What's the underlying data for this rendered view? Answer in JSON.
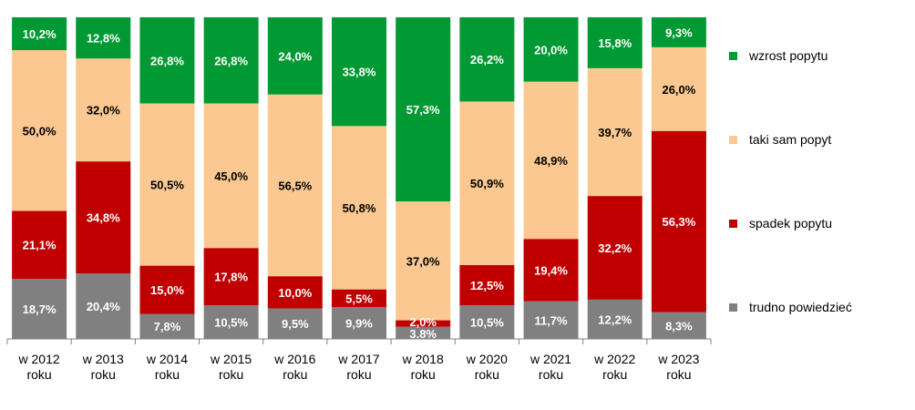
{
  "chart_data": {
    "type": "bar",
    "stacked": true,
    "normalized_percent": true,
    "title": "",
    "xlabel": "",
    "ylabel": "",
    "ylim": [
      0,
      100
    ],
    "grid": false,
    "legend_position": "right",
    "categories": [
      [
        "w 2012",
        "roku"
      ],
      [
        "w 2013",
        "roku"
      ],
      [
        "w 2014",
        "roku"
      ],
      [
        "w 2015",
        "roku"
      ],
      [
        "w 2016",
        "roku"
      ],
      [
        "w 2017",
        "roku"
      ],
      [
        "w 2018",
        "roku"
      ],
      [
        "w 2020",
        "roku"
      ],
      [
        "w 2021",
        "roku"
      ],
      [
        "w 2022",
        "roku"
      ],
      [
        "w 2023",
        "roku"
      ]
    ],
    "series": [
      {
        "name": "trudno powiedzieć",
        "color": "#808080",
        "label_color": "#ffffff",
        "values": [
          18.7,
          20.4,
          7.8,
          10.5,
          9.5,
          9.9,
          3.8,
          10.5,
          11.7,
          12.2,
          8.3
        ],
        "labels": [
          "18,7%",
          "20,4%",
          "7,8%",
          "10,5%",
          "9,5%",
          "9,9%",
          "3,8%",
          "10,5%",
          "11,7%",
          "12,2%",
          "8,3%"
        ]
      },
      {
        "name": "spadek popytu",
        "color": "#c00000",
        "label_color": "#ffffff",
        "values": [
          21.1,
          34.8,
          15.0,
          17.8,
          10.0,
          5.5,
          2.0,
          12.5,
          19.4,
          32.2,
          56.3
        ],
        "labels": [
          "21,1%",
          "34,8%",
          "15,0%",
          "17,8%",
          "10,0%",
          "5,5%",
          "2,0%",
          "12,5%",
          "19,4%",
          "32,2%",
          "56,3%"
        ]
      },
      {
        "name": "taki sam popyt",
        "color": "#fac890",
        "label_color": "#000000",
        "values": [
          50.0,
          32.0,
          50.5,
          45.0,
          56.5,
          50.8,
          37.0,
          50.9,
          48.9,
          39.7,
          26.0
        ],
        "labels": [
          "50,0%",
          "32,0%",
          "50,5%",
          "45,0%",
          "56,5%",
          "50,8%",
          "37,0%",
          "50,9%",
          "48,9%",
          "39,7%",
          "26,0%"
        ]
      },
      {
        "name": "wzrost popytu",
        "color": "#009933",
        "label_color": "#ffffff",
        "values": [
          10.2,
          12.8,
          26.8,
          26.8,
          24.0,
          33.8,
          57.3,
          26.2,
          20.0,
          15.8,
          9.3
        ],
        "labels": [
          "10,2%",
          "12,8%",
          "26,8%",
          "26,8%",
          "24,0%",
          "33,8%",
          "57,3%",
          "26,2%",
          "20,0%",
          "15,8%",
          "9,3%"
        ]
      }
    ],
    "legend_order": [
      "wzrost popytu",
      "taki sam popyt",
      "spadek popytu",
      "trudno powiedzieć"
    ]
  }
}
